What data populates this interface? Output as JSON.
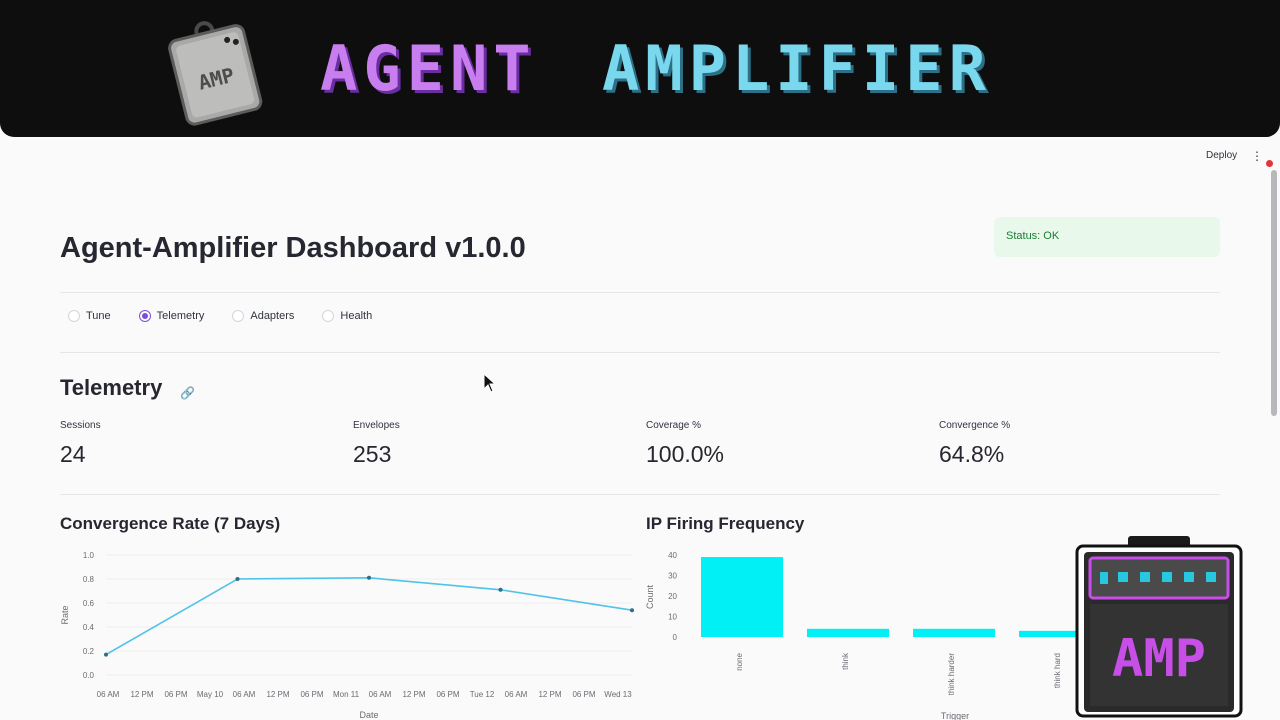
{
  "banner": {
    "title_part1": "AGENT",
    "title_part2": "AMPLIFIER",
    "badge_text": "AMP"
  },
  "header": {
    "deploy_label": "Deploy",
    "menu_glyph": "⋮"
  },
  "status": {
    "text": "Status: OK",
    "color": "#1c7c36"
  },
  "page": {
    "title": "Agent-Amplifier Dashboard v1.0.0"
  },
  "nav": {
    "options": [
      {
        "label": "Tune",
        "selected": false
      },
      {
        "label": "Telemetry",
        "selected": true
      },
      {
        "label": "Adapters",
        "selected": false
      },
      {
        "label": "Health",
        "selected": false
      }
    ]
  },
  "section": {
    "title": "Telemetry",
    "link_icon": "link-icon"
  },
  "metrics": [
    {
      "label": "Sessions",
      "value": "24"
    },
    {
      "label": "Envelopes",
      "value": "253"
    },
    {
      "label": "Coverage %",
      "value": "100.0%"
    },
    {
      "label": "Convergence %",
      "value": "64.8%"
    }
  ],
  "charts": {
    "left_title": "Convergence Rate (7 Days)",
    "right_title": "IP Firing Frequency"
  },
  "chart_data": [
    {
      "type": "line",
      "title": "Convergence Rate (7 Days)",
      "xlabel": "Date",
      "ylabel": "Rate",
      "x_ticks": [
        "06 AM",
        "12 PM",
        "06 PM",
        "May 10",
        "06 AM",
        "12 PM",
        "06 PM",
        "Mon 11",
        "06 AM",
        "12 PM",
        "06 PM",
        "Tue 12",
        "06 AM",
        "12 PM",
        "06 PM",
        "Wed 13"
      ],
      "y_ticks": [
        "0.0",
        "0.2",
        "0.4",
        "0.6",
        "0.8",
        "1.0"
      ],
      "ylim": [
        0,
        1
      ],
      "x": [
        0,
        1,
        2,
        3,
        4
      ],
      "values": [
        0.17,
        0.8,
        0.81,
        0.71,
        0.54
      ],
      "grid": true,
      "color": "#4fc3e8"
    },
    {
      "type": "bar",
      "title": "IP Firing Frequency",
      "xlabel": "Trigger",
      "ylabel": "Count",
      "categories": [
        "none",
        "think",
        "think harder",
        "think hard"
      ],
      "values": [
        39,
        4,
        4,
        3
      ],
      "y_ticks": [
        "0",
        "10",
        "20",
        "30",
        "40"
      ],
      "ylim": [
        0,
        40
      ],
      "color": "#00f0f5"
    }
  ]
}
